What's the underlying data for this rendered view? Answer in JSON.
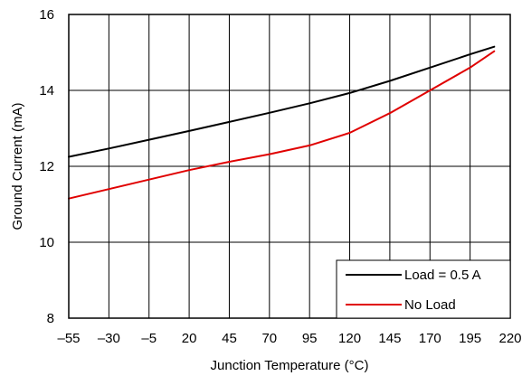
{
  "chart_data": {
    "type": "line",
    "title": "",
    "xlabel": "Junction Temperature (°C)",
    "ylabel": "Ground Current (mA)",
    "xlim": [
      -55,
      220
    ],
    "ylim": [
      8,
      16
    ],
    "x_ticks": [
      -55,
      -30,
      -5,
      20,
      45,
      70,
      95,
      120,
      145,
      170,
      195,
      220
    ],
    "x_tick_labels": [
      "–55",
      "–30",
      "–5",
      "20",
      "45",
      "70",
      "95",
      "120",
      "145",
      "170",
      "195",
      "220"
    ],
    "y_ticks": [
      8,
      10,
      12,
      14,
      16
    ],
    "y_tick_labels": [
      "8",
      "10",
      "12",
      "14",
      "16"
    ],
    "grid": true,
    "legend_position": "bottom-right",
    "series": [
      {
        "name": "Load = 0.5 A",
        "color": "#000000",
        "x": [
          -55,
          -30,
          -5,
          20,
          45,
          70,
          95,
          120,
          145,
          170,
          195,
          210
        ],
        "values": [
          12.25,
          12.47,
          12.7,
          12.93,
          13.17,
          13.41,
          13.66,
          13.93,
          14.25,
          14.6,
          14.95,
          15.15
        ]
      },
      {
        "name": "No Load",
        "color": "#e00000",
        "x": [
          -55,
          -30,
          -5,
          20,
          45,
          70,
          95,
          120,
          145,
          170,
          195,
          210
        ],
        "values": [
          11.15,
          11.4,
          11.65,
          11.9,
          12.12,
          12.32,
          12.55,
          12.88,
          13.4,
          14.0,
          14.6,
          15.03
        ]
      }
    ]
  }
}
